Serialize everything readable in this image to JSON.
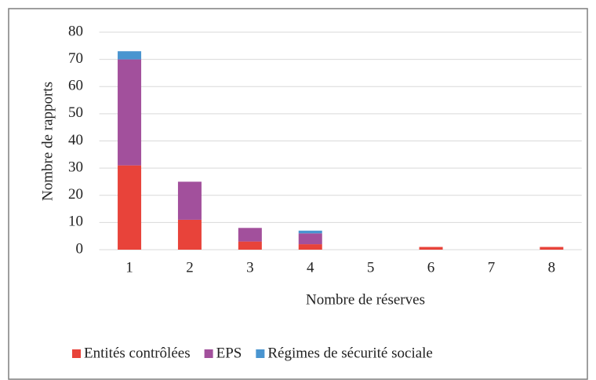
{
  "chart_data": {
    "type": "stacked_bar",
    "x_label": "Nombre de réserves",
    "y_label": "Nombre de rapports",
    "categories": [
      "1",
      "2",
      "3",
      "4",
      "5",
      "6",
      "7",
      "8"
    ],
    "series": [
      {
        "name": "Entités contrôlées",
        "color": "#e8433a",
        "values": [
          31,
          11,
          3,
          2,
          0,
          1,
          0,
          1
        ]
      },
      {
        "name": "EPS",
        "color": "#a2509c",
        "values": [
          39,
          14,
          5,
          4,
          0,
          0,
          0,
          0
        ]
      },
      {
        "name": "Régimes de sécurité sociale",
        "color": "#4a95d0",
        "values": [
          3,
          0,
          0,
          1,
          0,
          0,
          0,
          0
        ]
      }
    ],
    "ylim": [
      0,
      80
    ],
    "yticks": [
      0,
      10,
      20,
      30,
      40,
      50,
      60,
      70,
      80
    ],
    "grid": true,
    "legend": "bottom"
  }
}
